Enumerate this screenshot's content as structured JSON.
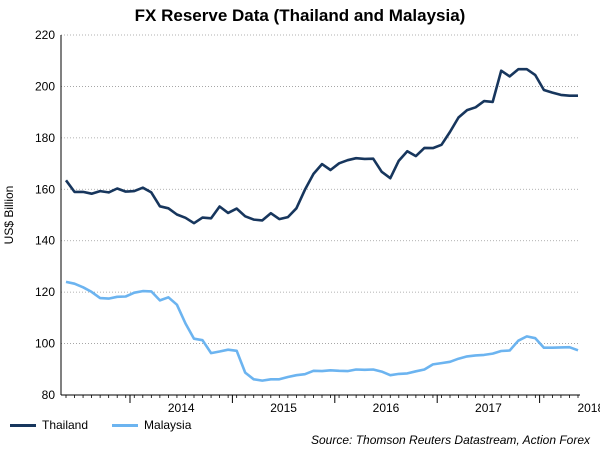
{
  "chart_data": {
    "type": "line",
    "title": "FX Reserve Data (Thailand and Malaysia)",
    "ylabel": "US$ Billion",
    "xlabel": "",
    "ylim": [
      80,
      220
    ],
    "yticks": [
      80,
      100,
      120,
      140,
      160,
      180,
      200,
      220
    ],
    "xticks": [
      "2014",
      "2015",
      "2016",
      "2017",
      "2018"
    ],
    "x": [
      "2013-05",
      "2013-06",
      "2013-07",
      "2013-08",
      "2013-09",
      "2013-10",
      "2013-11",
      "2013-12",
      "2014-01",
      "2014-02",
      "2014-03",
      "2014-04",
      "2014-05",
      "2014-06",
      "2014-07",
      "2014-08",
      "2014-09",
      "2014-10",
      "2014-11",
      "2014-12",
      "2015-01",
      "2015-02",
      "2015-03",
      "2015-04",
      "2015-05",
      "2015-06",
      "2015-07",
      "2015-08",
      "2015-09",
      "2015-10",
      "2015-11",
      "2015-12",
      "2016-01",
      "2016-02",
      "2016-03",
      "2016-04",
      "2016-05",
      "2016-06",
      "2016-07",
      "2016-08",
      "2016-09",
      "2016-10",
      "2016-11",
      "2016-12",
      "2017-01",
      "2017-02",
      "2017-03",
      "2017-04",
      "2017-05",
      "2017-06",
      "2017-07",
      "2017-08",
      "2017-09",
      "2017-10",
      "2017-11",
      "2017-12",
      "2018-01",
      "2018-02",
      "2018-03",
      "2018-04",
      "2018-05"
    ],
    "grid": "horizontal dotted",
    "legend_position": "bottom-left",
    "series": [
      {
        "name": "Thailand",
        "color": "#17365d",
        "values": [
          163.5,
          159,
          159,
          158.3,
          159.3,
          158.8,
          160.3,
          159.1,
          159.3,
          160.6,
          158.8,
          153.4,
          152.6,
          150.2,
          148.9,
          146.8,
          149,
          148.7,
          153.3,
          150.8,
          152.5,
          149.5,
          148.2,
          147.9,
          150.7,
          148.4,
          149.2,
          152.6,
          159.8,
          166,
          169.8,
          167.5,
          170.1,
          171.3,
          172.1,
          171.8,
          171.9,
          166.8,
          164.3,
          171.1,
          174.8,
          172.9,
          176.1,
          176,
          177.3,
          182.3,
          187.9,
          190.8,
          191.9,
          194.3,
          194,
          206.1,
          203.9,
          206.7,
          206.7,
          204.4,
          198.6,
          197.6,
          196.7,
          196.4,
          196.4
        ]
      },
      {
        "name": "Malaysia",
        "color": "#6cb4f0",
        "values": [
          124,
          123.3,
          121.9,
          120.1,
          117.7,
          117.5,
          118.2,
          118.3,
          119.8,
          120.4,
          120.3,
          116.8,
          118,
          115.1,
          107.8,
          101.9,
          101.3,
          96.3,
          96.9,
          97.6,
          97.2,
          88.7,
          86.1,
          85.6,
          86.1,
          86.1,
          87,
          87.7,
          88.1,
          89.4,
          89.3,
          89.6,
          89.4,
          89.3,
          89.9,
          89.8,
          89.9,
          89.1,
          87.7,
          88.2,
          88.4,
          89.2,
          89.9,
          91.9,
          92.4,
          92.9,
          94.1,
          95,
          95.4,
          95.6,
          96.1,
          97.1,
          97.3,
          101.1,
          102.8,
          102.1,
          98.4,
          98.4,
          98.5,
          98.6,
          97.4
        ]
      }
    ],
    "source": "Source: Thomson Reuters Datastream, Action Forex"
  }
}
